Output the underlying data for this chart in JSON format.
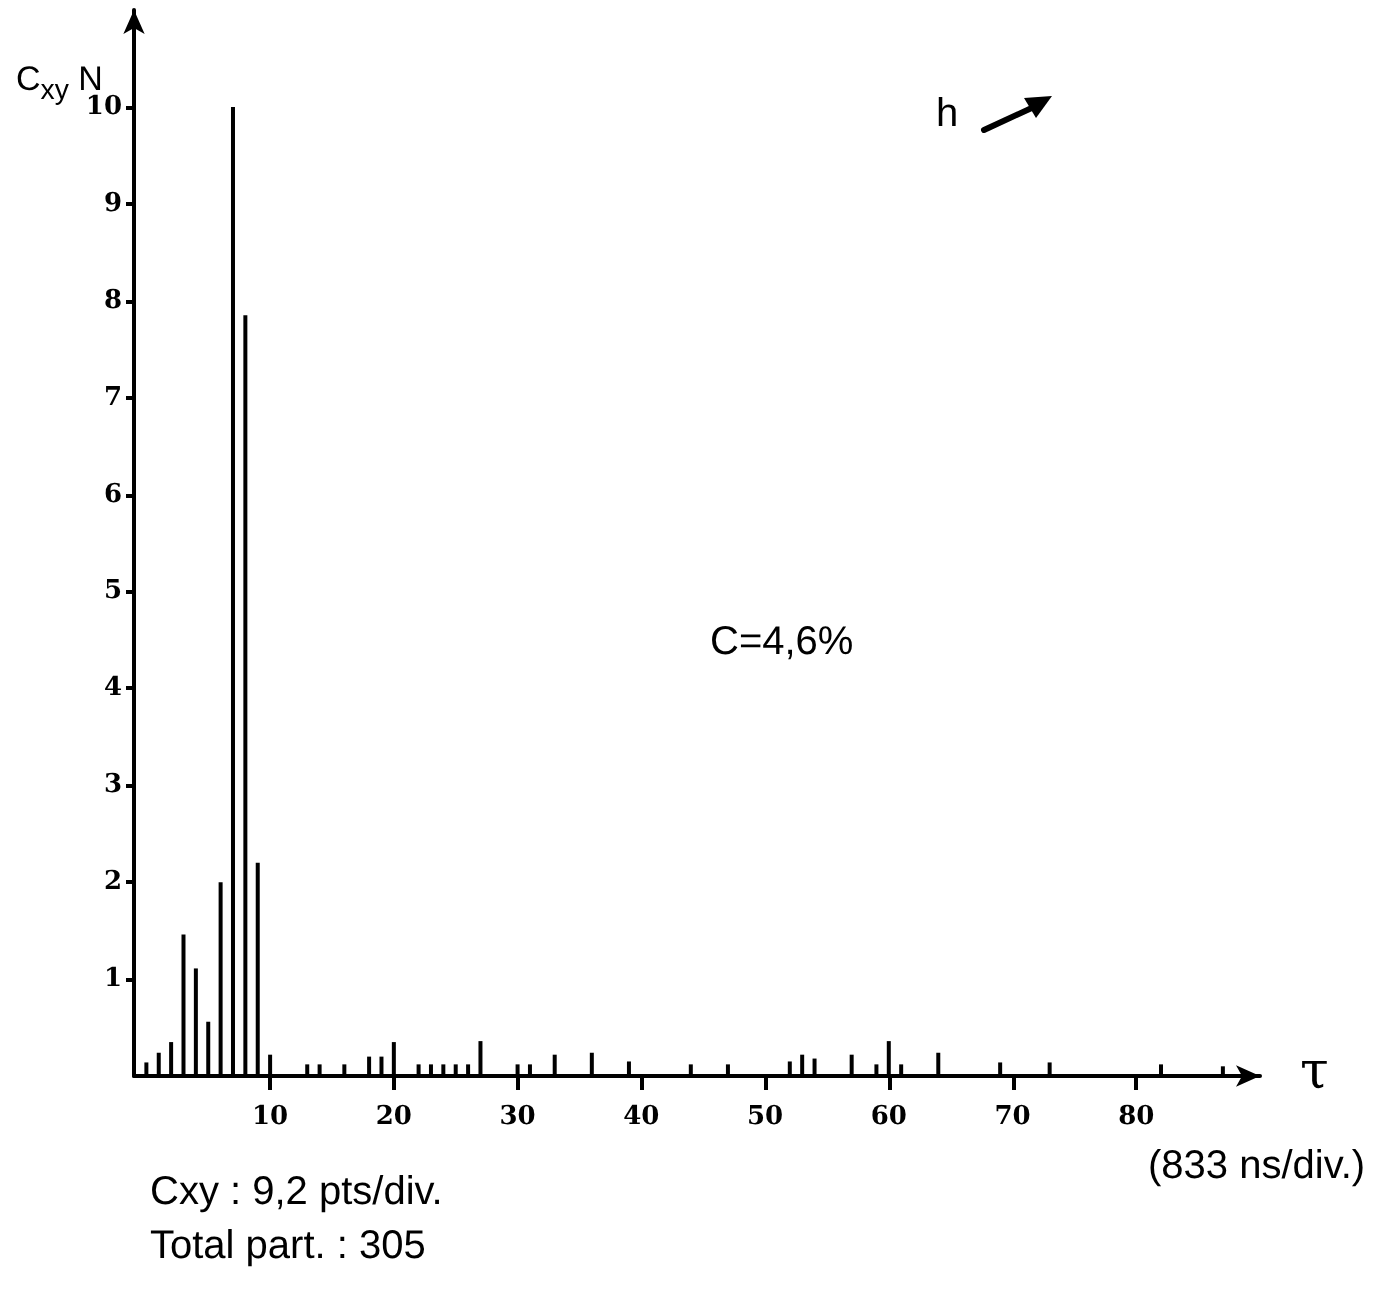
{
  "chart_data": {
    "type": "bar",
    "ylabel": "C$_{xy}$ N",
    "xlabel": "τ",
    "annotations": [
      "h",
      "C=4,6%",
      "(833 ns/div.)",
      "Cxy : 9,2 pts/div.",
      "Total part. : 305"
    ],
    "x": [
      0,
      1,
      2,
      3,
      4,
      5,
      6,
      7,
      8,
      9,
      10,
      13,
      14,
      16,
      18,
      19,
      20,
      22,
      23,
      24,
      25,
      26,
      27,
      30,
      31,
      33,
      36,
      39,
      44,
      47,
      52,
      53,
      54,
      57,
      59,
      60,
      61,
      64,
      69,
      73,
      82,
      87
    ],
    "values": [
      0.14,
      0.24,
      0.35,
      1.46,
      1.11,
      0.56,
      2.0,
      10,
      7.85,
      2.2,
      0.22,
      0.12,
      0.12,
      0.12,
      0.2,
      0.2,
      0.35,
      0.12,
      0.12,
      0.12,
      0.12,
      0.12,
      0.36,
      0.12,
      0.12,
      0.22,
      0.24,
      0.15,
      0.12,
      0.12,
      0.15,
      0.22,
      0.18,
      0.22,
      0.12,
      0.36,
      0.12,
      0.24,
      0.14,
      0.14,
      0.12,
      0.1
    ],
    "color": "#000000",
    "xlim": [
      -1,
      90
    ],
    "xticks": [
      10,
      20,
      30,
      40,
      50,
      60,
      70,
      80
    ],
    "ylim": [
      0,
      11
    ],
    "yticks": [
      1,
      2,
      3,
      4,
      5,
      6,
      7,
      8,
      9,
      10
    ],
    "grid": false
  }
}
